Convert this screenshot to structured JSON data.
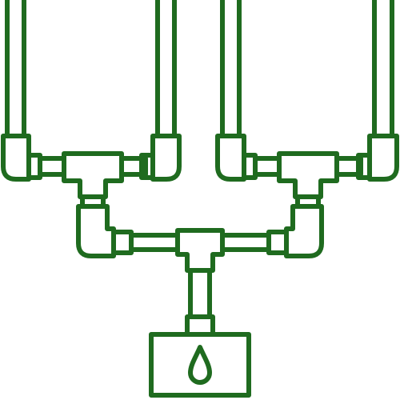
{
  "illustration": {
    "subject": "pipe-manifold-icon",
    "stroke_color": "#1f6b1f",
    "background_color": "#ffffff",
    "parts": [
      "left-pipe-pair",
      "right-pipe-pair",
      "left-elbow-upper",
      "right-elbow-upper",
      "left-tee",
      "right-tee",
      "center-tee",
      "main-riser",
      "water-tank",
      "water-drop-icon"
    ]
  }
}
